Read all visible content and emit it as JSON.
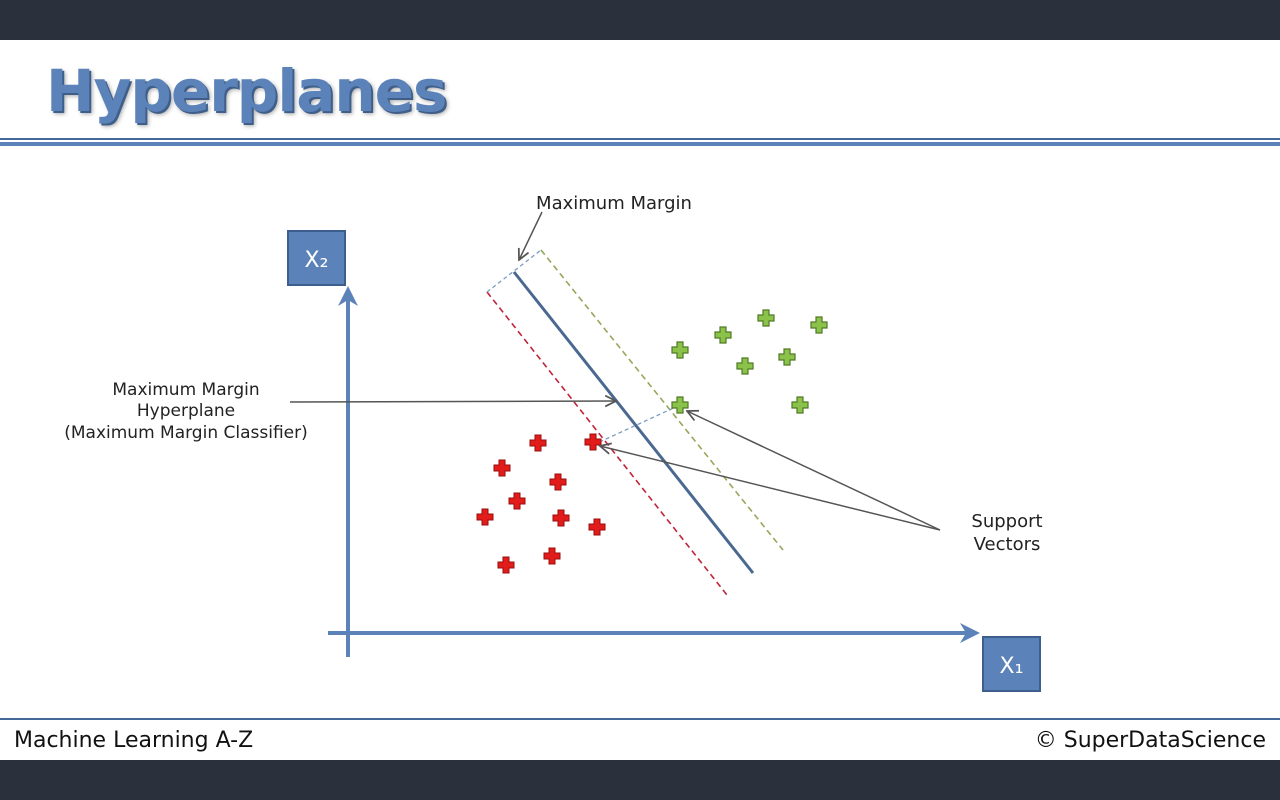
{
  "slide": {
    "title": "Hyperplanes",
    "footer_left": "Machine Learning A-Z",
    "footer_right": "© SuperDataScience"
  },
  "diagram": {
    "axis_x_label": "X₁",
    "axis_y_label": "X₂",
    "annotations": {
      "maximum_margin": "Maximum Margin",
      "hyperplane_line1": "Maximum Margin",
      "hyperplane_line2": "Hyperplane",
      "hyperplane_line3": "(Maximum Margin Classifier)",
      "support_line1": "Support",
      "support_line2": "Vectors"
    },
    "colors": {
      "accent": "#5b83b9",
      "red_class": "#e21b1b",
      "green_class": "#8bc34a",
      "hyperplane": "#4a6890",
      "red_margin": "#c0243a",
      "green_margin": "#93a85a"
    }
  }
}
